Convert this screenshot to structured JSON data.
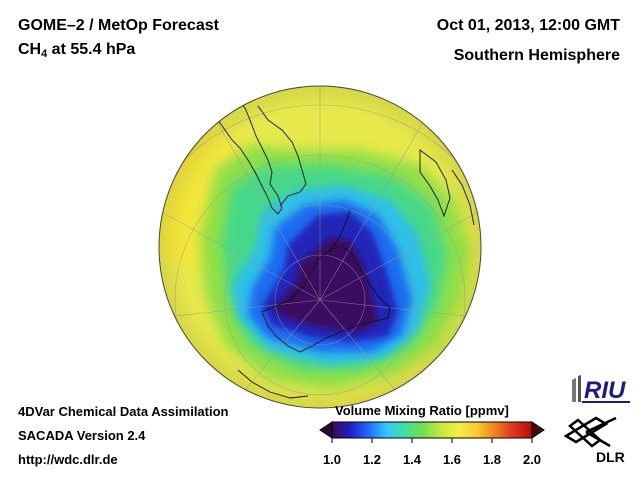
{
  "header": {
    "title_line1": "GOME–2 / MetOp Forecast",
    "species": "CH",
    "species_sub": "4",
    "level": " at 55.4 hPa",
    "datetime": "Oct 01, 2013, 12:00 GMT",
    "region": "Southern Hemisphere"
  },
  "footer": {
    "line1": "4DVar Chemical Data Assimilation",
    "line2": "SACADA Version 2.4",
    "line3": "http://wdc.dlr.de"
  },
  "colorbar": {
    "title": "Volume Mixing Ratio [ppmv]",
    "ticks": [
      "1.0",
      "1.2",
      "1.4",
      "1.6",
      "1.8",
      "2.0"
    ],
    "min": 1.0,
    "max": 2.0,
    "colors": [
      "#3a0a5c",
      "#2020c0",
      "#1e6bff",
      "#30c8ff",
      "#40e0a0",
      "#70e050",
      "#c8e840",
      "#f0f040",
      "#f8c830",
      "#f08020",
      "#e03020",
      "#b01010"
    ]
  },
  "logos": {
    "riu": "RIU",
    "dlr": "DLR"
  }
}
